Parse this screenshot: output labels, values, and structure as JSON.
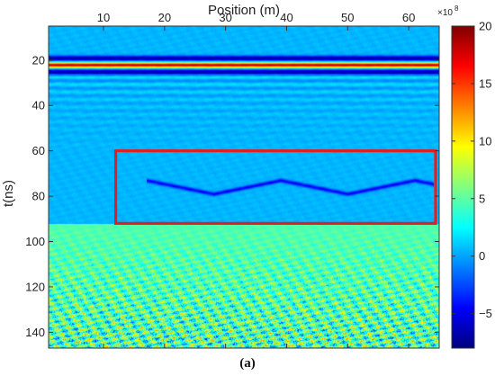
{
  "chart_data": {
    "type": "heatmap",
    "title": "",
    "xlabel": "Position (m)",
    "ylabel": "t(ns)",
    "xlim": [
      1,
      65
    ],
    "ylim": [
      147,
      5
    ],
    "xticks": [
      10,
      20,
      30,
      40,
      50,
      60
    ],
    "yticks": [
      20,
      40,
      60,
      80,
      100,
      120,
      140
    ],
    "colorbar": {
      "range": [
        -8,
        20
      ],
      "ticks": [
        -5,
        0,
        5,
        10,
        15,
        20
      ],
      "multiplier_label": "×10",
      "multiplier_exponent": "8",
      "colormap": "jet"
    },
    "features": [
      {
        "label": "",
        "type": "reflector",
        "t_ns": 22,
        "value": 18
      },
      {
        "label": "",
        "type": "reflector",
        "t_ns": 19,
        "value": -7
      },
      {
        "label": "",
        "type": "reflector",
        "t_ns": 25,
        "value": -7
      },
      {
        "label": "",
        "type": "hyperbola-reflections",
        "t_ns": [
          72,
          78
        ],
        "x_m": [
          17,
          64
        ]
      }
    ],
    "annotation_box": {
      "x_m": [
        12,
        65
      ],
      "t_ns": [
        60,
        92
      ],
      "color": "#e02020"
    }
  },
  "caption": "(a)"
}
